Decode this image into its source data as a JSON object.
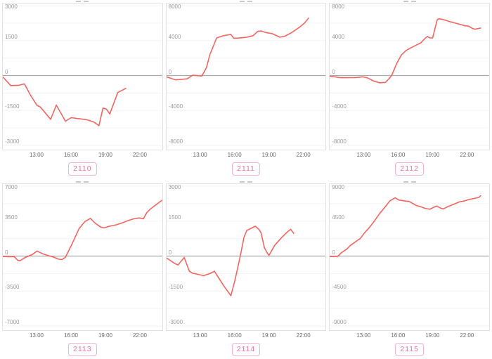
{
  "colors": {
    "line": "#f4645f",
    "grid_line": "#f3f3f3",
    "zero_line": "#a8a8a8",
    "box_border": "#e2e2e2",
    "badge_text": "#ee6f97",
    "badge_border": "#f6b3c6",
    "y_tick_text": "#9a9a9a",
    "x_tick_text": "#666666"
  },
  "chart_data": [
    {
      "type": "line",
      "badge": "2110",
      "ylim": 3000,
      "ytick_labels": [
        "3000",
        "1500",
        "0",
        "-1500",
        "-3000"
      ],
      "xtick_labels": [
        "13:00",
        "16:00",
        "19:00",
        "22:00"
      ],
      "x_axis_range_hours": [
        10,
        24
      ],
      "points": [
        [
          10,
          -60
        ],
        [
          10.7,
          -430
        ],
        [
          11.4,
          -420
        ],
        [
          11.9,
          -360
        ],
        [
          12.4,
          -820
        ],
        [
          13.0,
          -1280
        ],
        [
          13.3,
          -1350
        ],
        [
          14.2,
          -1880
        ],
        [
          14.7,
          -1270
        ],
        [
          15.5,
          -1960
        ],
        [
          16.0,
          -1810
        ],
        [
          16.7,
          -1850
        ],
        [
          17.4,
          -1900
        ],
        [
          18.0,
          -2000
        ],
        [
          18.45,
          -2150
        ],
        [
          18.8,
          -1400
        ],
        [
          19.1,
          -1440
        ],
        [
          19.4,
          -1650
        ],
        [
          20.1,
          -730
        ],
        [
          20.85,
          -540
        ]
      ]
    },
    {
      "type": "line",
      "badge": "2111",
      "ylim": 8000,
      "ytick_labels": [
        "8000",
        "4000",
        "0",
        "-4000",
        "-8000"
      ],
      "xtick_labels": [
        "13:00",
        "16:00",
        "19:00",
        "22:00"
      ],
      "x_axis_range_hours": [
        10,
        24
      ],
      "points": [
        [
          10,
          -150
        ],
        [
          10.8,
          -500
        ],
        [
          11.8,
          -380
        ],
        [
          12.3,
          30
        ],
        [
          13.1,
          -60
        ],
        [
          13.5,
          900
        ],
        [
          13.8,
          2400
        ],
        [
          14.4,
          4300
        ],
        [
          15.0,
          4560
        ],
        [
          15.65,
          4700
        ],
        [
          15.9,
          4260
        ],
        [
          16.4,
          4290
        ],
        [
          17.0,
          4370
        ],
        [
          17.6,
          4560
        ],
        [
          18.0,
          5050
        ],
        [
          18.3,
          5100
        ],
        [
          18.8,
          4900
        ],
        [
          19.3,
          4780
        ],
        [
          19.95,
          4380
        ],
        [
          20.4,
          4500
        ],
        [
          21.0,
          4920
        ],
        [
          21.6,
          5450
        ],
        [
          22.1,
          5980
        ],
        [
          22.5,
          6600
        ]
      ]
    },
    {
      "type": "line",
      "badge": "2112",
      "ylim": 8000,
      "ytick_labels": [
        "8000",
        "4000",
        "0",
        "-4000",
        "-8000"
      ],
      "xtick_labels": [
        "13:00",
        "16:00",
        "19:00",
        "22:00"
      ],
      "x_axis_range_hours": [
        10,
        24
      ],
      "points": [
        [
          10,
          -80
        ],
        [
          11.0,
          -250
        ],
        [
          12.3,
          -230
        ],
        [
          12.9,
          -150
        ],
        [
          13.3,
          -260
        ],
        [
          13.9,
          -640
        ],
        [
          14.4,
          -830
        ],
        [
          14.9,
          -790
        ],
        [
          15.2,
          -380
        ],
        [
          15.45,
          0
        ],
        [
          15.9,
          1400
        ],
        [
          16.3,
          2350
        ],
        [
          16.7,
          2850
        ],
        [
          17.0,
          3080
        ],
        [
          17.6,
          3470
        ],
        [
          18.0,
          3730
        ],
        [
          18.4,
          4260
        ],
        [
          18.6,
          4470
        ],
        [
          18.8,
          4300
        ],
        [
          19.05,
          4300
        ],
        [
          19.3,
          5600
        ],
        [
          19.45,
          6380
        ],
        [
          19.6,
          6500
        ],
        [
          20.0,
          6400
        ],
        [
          20.6,
          6150
        ],
        [
          21.2,
          5950
        ],
        [
          21.9,
          5690
        ],
        [
          22.2,
          5660
        ],
        [
          22.5,
          5420
        ],
        [
          22.75,
          5300
        ],
        [
          23.3,
          5440
        ]
      ]
    },
    {
      "type": "line",
      "badge": "2113",
      "ylim": 7000,
      "ytick_labels": [
        "7000",
        "3500",
        "0",
        "-3500",
        "-7000"
      ],
      "xtick_labels": [
        "13:00",
        "16:00",
        "19:00",
        "22:00"
      ],
      "x_axis_range_hours": [
        10,
        24
      ],
      "points": [
        [
          10,
          -40
        ],
        [
          10.6,
          -70
        ],
        [
          11.0,
          -50
        ],
        [
          11.3,
          -420
        ],
        [
          11.5,
          -470
        ],
        [
          12.0,
          -120
        ],
        [
          12.6,
          160
        ],
        [
          13.0,
          500
        ],
        [
          13.5,
          230
        ],
        [
          13.85,
          100
        ],
        [
          14.5,
          -120
        ],
        [
          14.9,
          -310
        ],
        [
          15.2,
          -350
        ],
        [
          15.5,
          -110
        ],
        [
          16.1,
          1260
        ],
        [
          16.7,
          2750
        ],
        [
          17.2,
          3440
        ],
        [
          17.7,
          3780
        ],
        [
          18.1,
          3310
        ],
        [
          18.6,
          2900
        ],
        [
          18.9,
          2820
        ],
        [
          19.35,
          2980
        ],
        [
          20.0,
          3140
        ],
        [
          20.6,
          3370
        ],
        [
          21.0,
          3550
        ],
        [
          21.5,
          3730
        ],
        [
          22.0,
          3820
        ],
        [
          22.35,
          3730
        ],
        [
          22.65,
          4350
        ],
        [
          23.0,
          4740
        ],
        [
          24.0,
          5600
        ]
      ]
    },
    {
      "type": "line",
      "badge": "2114",
      "ylim": 3000,
      "ytick_labels": [
        "3000",
        "1500",
        "0",
        "-1500",
        "-3000"
      ],
      "xtick_labels": [
        "13:00",
        "16:00",
        "19:00",
        "22:00"
      ],
      "x_axis_range_hours": [
        10,
        24
      ],
      "points": [
        [
          10,
          -80
        ],
        [
          10.7,
          -310
        ],
        [
          11.0,
          -380
        ],
        [
          11.55,
          -60
        ],
        [
          12.0,
          -650
        ],
        [
          12.3,
          -740
        ],
        [
          12.9,
          -800
        ],
        [
          13.25,
          -840
        ],
        [
          13.8,
          -750
        ],
        [
          14.2,
          -650
        ],
        [
          14.6,
          -950
        ],
        [
          15.0,
          -1260
        ],
        [
          15.4,
          -1530
        ],
        [
          15.65,
          -1700
        ],
        [
          16.0,
          -1060
        ],
        [
          16.45,
          -60
        ],
        [
          16.8,
          800
        ],
        [
          17.05,
          1100
        ],
        [
          17.5,
          1210
        ],
        [
          17.8,
          1280
        ],
        [
          18.1,
          1150
        ],
        [
          18.3,
          1000
        ],
        [
          18.6,
          350
        ],
        [
          18.85,
          130
        ],
        [
          19.0,
          30
        ],
        [
          19.5,
          460
        ],
        [
          20.1,
          790
        ],
        [
          20.6,
          1030
        ],
        [
          20.9,
          1150
        ],
        [
          21.2,
          960
        ]
      ]
    },
    {
      "type": "line",
      "badge": "2115",
      "ylim": 9000,
      "ytick_labels": [
        "9000",
        "4500",
        "0",
        "-4500",
        "-9000"
      ],
      "xtick_labels": [
        "13:00",
        "16:00",
        "19:00",
        "22:00"
      ],
      "x_axis_range_hours": [
        10,
        24
      ],
      "points": [
        [
          10,
          -60
        ],
        [
          10.7,
          -50
        ],
        [
          11.05,
          450
        ],
        [
          11.5,
          890
        ],
        [
          11.8,
          1340
        ],
        [
          12.3,
          1870
        ],
        [
          12.7,
          2280
        ],
        [
          13.05,
          2970
        ],
        [
          13.5,
          3700
        ],
        [
          13.9,
          4450
        ],
        [
          14.4,
          5490
        ],
        [
          14.9,
          6380
        ],
        [
          15.3,
          7120
        ],
        [
          15.75,
          7500
        ],
        [
          16.1,
          7210
        ],
        [
          16.5,
          7120
        ],
        [
          17.0,
          7030
        ],
        [
          17.6,
          6520
        ],
        [
          17.95,
          6380
        ],
        [
          18.4,
          6140
        ],
        [
          18.8,
          6020
        ],
        [
          19.2,
          6320
        ],
        [
          19.4,
          6440
        ],
        [
          19.8,
          6140
        ],
        [
          20.0,
          6080
        ],
        [
          20.4,
          6380
        ],
        [
          21.0,
          6730
        ],
        [
          21.4,
          6970
        ],
        [
          21.9,
          7120
        ],
        [
          22.2,
          7270
        ],
        [
          22.65,
          7410
        ],
        [
          23.1,
          7540
        ],
        [
          23.3,
          7810
        ]
      ]
    }
  ]
}
